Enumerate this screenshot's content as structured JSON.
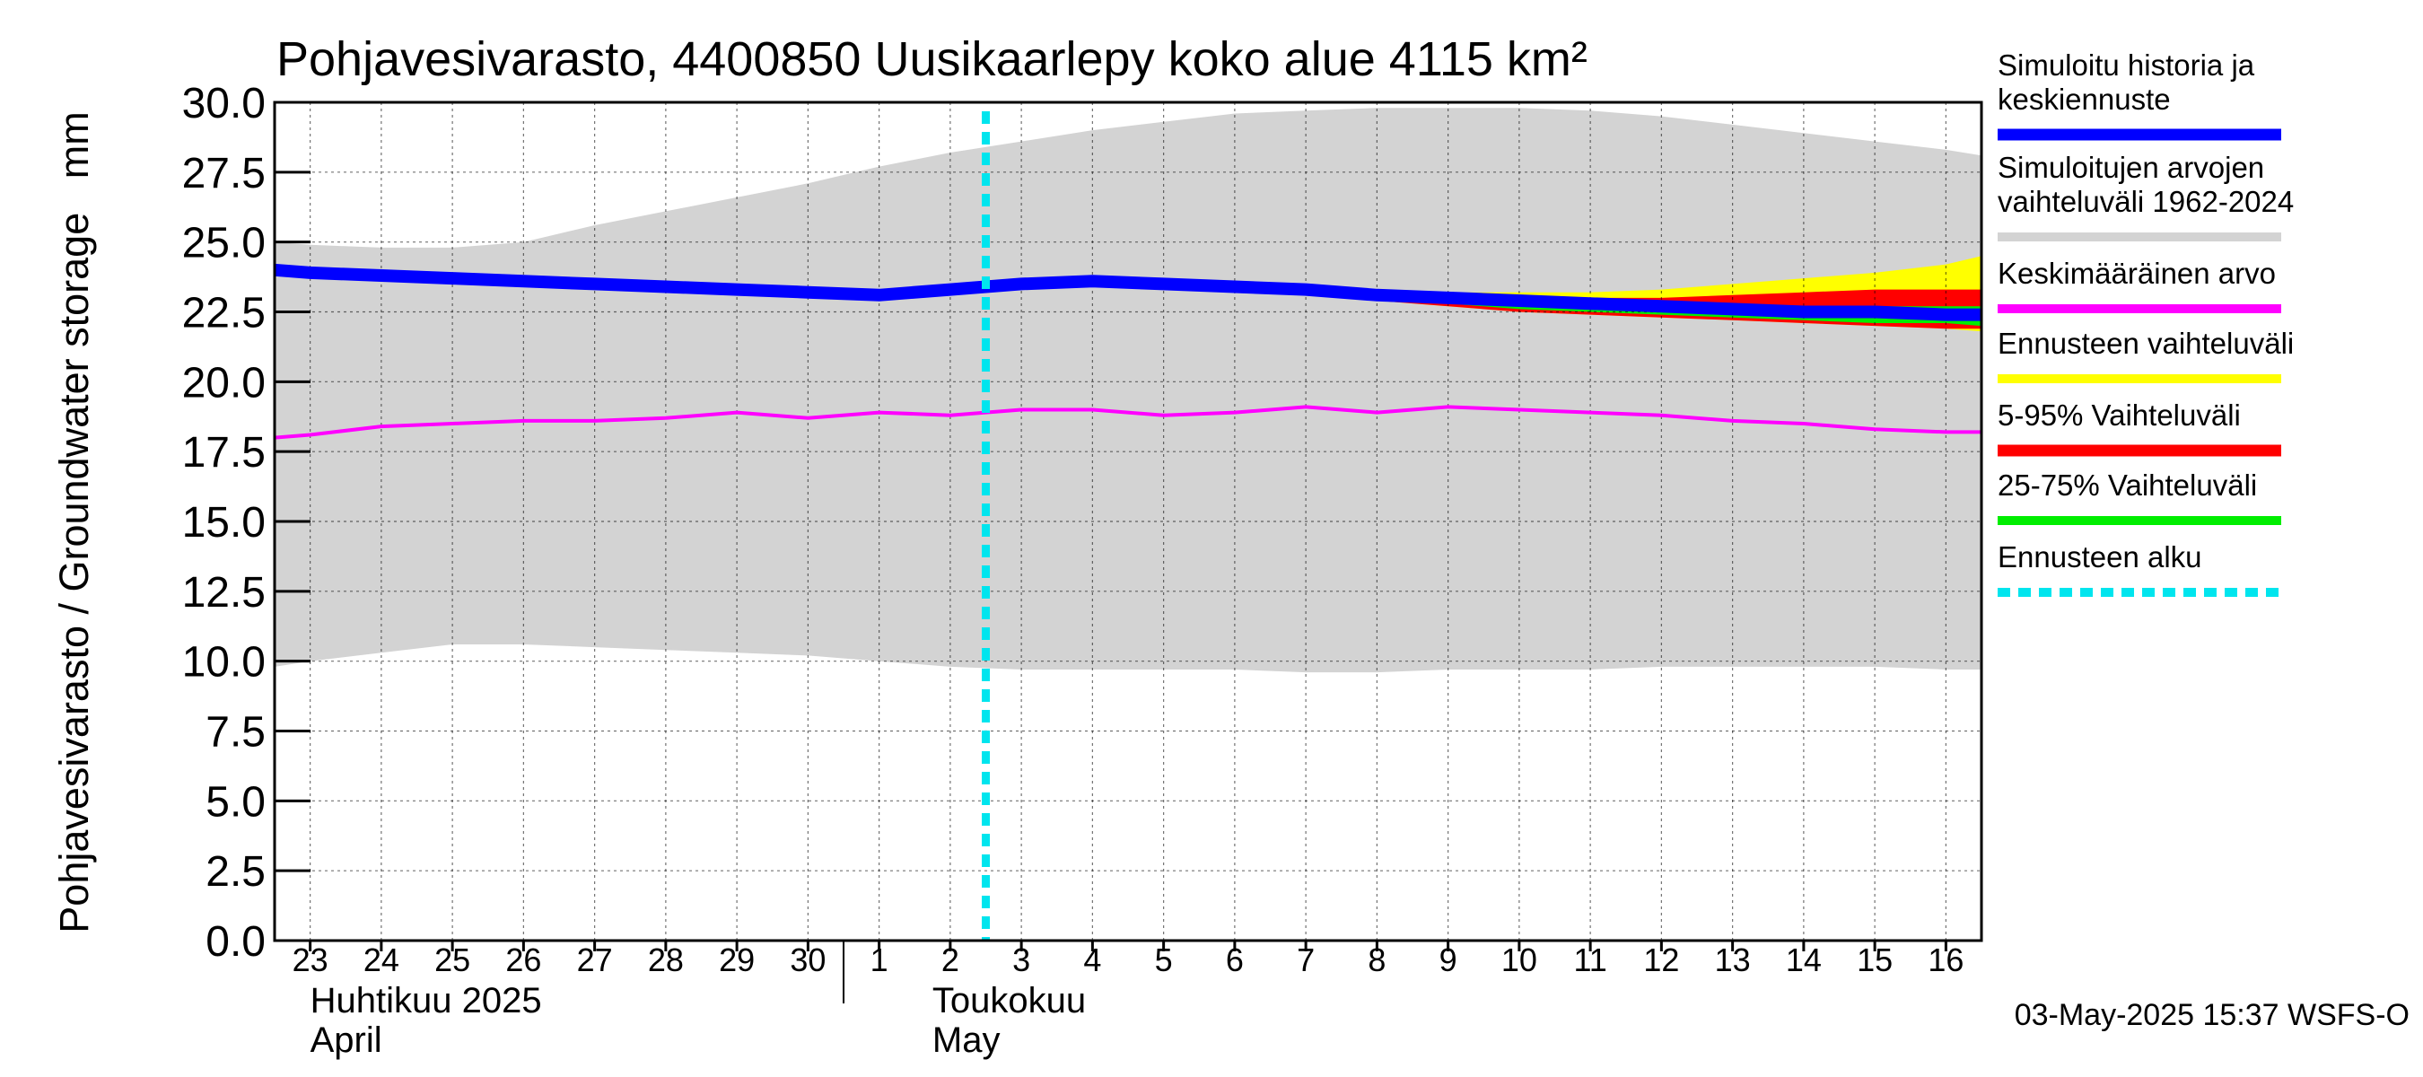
{
  "chart_data": {
    "type": "area",
    "title": "Pohjavesivarasto, 4400850 Uusikaarlepy koko alue 4115 km²",
    "ylabel": "Pohjavesivarasto / Groundwater storage   mm",
    "ylim": [
      0,
      30
    ],
    "yticks": [
      "0.0",
      "2.5",
      "5.0",
      "7.5",
      "10.0",
      "12.5",
      "15.0",
      "17.5",
      "20.0",
      "22.5",
      "25.0",
      "27.5",
      "30.0"
    ],
    "xlim": [
      -0.5,
      23.5
    ],
    "x_day_labels": [
      "23",
      "24",
      "25",
      "26",
      "27",
      "28",
      "29",
      "30",
      "1",
      "2",
      "3",
      "4",
      "5",
      "6",
      "7",
      "8",
      "9",
      "10",
      "11",
      "12",
      "13",
      "14",
      "15",
      "16"
    ],
    "month_labels": [
      {
        "fi": "Huhtikuu  2025",
        "en": "April",
        "at": 0
      },
      {
        "fi": "Toukokuu",
        "en": "May",
        "at": 9
      }
    ],
    "month_boundary": 7.5,
    "forecast_start": 9.5,
    "grid": true,
    "series": [
      {
        "name": "Simuloitujen arvojen vaihteluväli 1962-2024",
        "color": "#d3d3d3",
        "x": [
          -0.5,
          0,
          1,
          2,
          3,
          4,
          5,
          6,
          7,
          8,
          9,
          10,
          11,
          12,
          13,
          14,
          15,
          16,
          17,
          18,
          19,
          20,
          21,
          22,
          23,
          23.5
        ],
        "upper": [
          25.0,
          24.9,
          24.8,
          24.8,
          25.0,
          25.6,
          26.1,
          26.6,
          27.1,
          27.7,
          28.2,
          28.6,
          29.0,
          29.3,
          29.6,
          29.7,
          29.8,
          29.8,
          29.8,
          29.7,
          29.5,
          29.2,
          28.9,
          28.6,
          28.3,
          28.1
        ],
        "lower": [
          9.8,
          10.0,
          10.3,
          10.6,
          10.6,
          10.5,
          10.4,
          10.3,
          10.2,
          10.0,
          9.8,
          9.7,
          9.7,
          9.7,
          9.7,
          9.6,
          9.6,
          9.7,
          9.7,
          9.7,
          9.8,
          9.8,
          9.8,
          9.8,
          9.7,
          9.7
        ]
      },
      {
        "name": "Ennusteen vaihteluväli",
        "color": "#ffff00",
        "x": [
          13,
          14,
          15,
          16,
          17,
          18,
          19,
          20,
          21,
          22,
          23,
          23.5
        ],
        "upper": [
          23.5,
          23.4,
          23.3,
          23.2,
          23.2,
          23.2,
          23.3,
          23.5,
          23.7,
          23.9,
          24.2,
          24.5
        ],
        "lower": [
          23.3,
          23.1,
          22.9,
          22.7,
          22.5,
          22.4,
          22.3,
          22.2,
          22.1,
          22.0,
          21.9,
          21.8
        ]
      },
      {
        "name": "5-95% Vaihteluväli",
        "color": "#ff0000",
        "x": [
          13,
          14,
          15,
          16,
          17,
          18,
          19,
          20,
          21,
          22,
          23,
          23.5
        ],
        "upper": [
          23.5,
          23.4,
          23.3,
          23.2,
          23.1,
          23.0,
          23.0,
          23.1,
          23.2,
          23.3,
          23.3,
          23.3
        ],
        "lower": [
          23.3,
          23.1,
          22.9,
          22.7,
          22.5,
          22.4,
          22.3,
          22.2,
          22.1,
          22.0,
          21.9,
          21.9
        ]
      },
      {
        "name": "25-75% Vaihteluväli",
        "color": "#00ee00",
        "x": [
          14,
          15,
          16,
          17,
          18,
          19,
          20,
          21,
          22,
          23,
          23.5
        ],
        "upper": [
          23.3,
          23.2,
          23.0,
          22.9,
          22.8,
          22.7,
          22.7,
          22.7,
          22.7,
          22.7,
          22.7
        ],
        "lower": [
          23.2,
          23.0,
          22.8,
          22.6,
          22.5,
          22.4,
          22.3,
          22.2,
          22.1,
          22.1,
          22.0
        ]
      },
      {
        "name": "Keskimääräinen arvo",
        "color": "#ff00ff",
        "x": [
          -0.5,
          0,
          1,
          2,
          3,
          4,
          5,
          6,
          7,
          8,
          9,
          10,
          11,
          12,
          13,
          14,
          15,
          16,
          17,
          18,
          19,
          20,
          21,
          22,
          23,
          23.5
        ],
        "values": [
          18.0,
          18.1,
          18.4,
          18.5,
          18.6,
          18.6,
          18.7,
          18.9,
          18.7,
          18.9,
          18.8,
          19.0,
          19.0,
          18.8,
          18.9,
          19.1,
          18.9,
          19.1,
          19.0,
          18.9,
          18.8,
          18.6,
          18.5,
          18.3,
          18.2,
          18.2
        ]
      },
      {
        "name": "Simuloitu historia ja keskiennuste",
        "color": "#0000ff",
        "x": [
          -0.5,
          0,
          1,
          2,
          3,
          4,
          5,
          6,
          7,
          8,
          9,
          10,
          11,
          12,
          13,
          14,
          15,
          16,
          17,
          18,
          19,
          20,
          21,
          22,
          23,
          23.5
        ],
        "values": [
          24.0,
          23.9,
          23.8,
          23.7,
          23.6,
          23.5,
          23.4,
          23.3,
          23.2,
          23.1,
          23.3,
          23.5,
          23.6,
          23.5,
          23.4,
          23.3,
          23.1,
          23.0,
          22.9,
          22.8,
          22.7,
          22.6,
          22.5,
          22.5,
          22.4,
          22.4
        ]
      }
    ],
    "forecast_line": {
      "name": "Ennusteen alku",
      "color": "#00e5ee"
    },
    "legend": {
      "placement": "right",
      "entries": [
        {
          "label": "Simuloitu historia ja keskiennuste",
          "color": "#0000ff"
        },
        {
          "label": "Simuloitujen arvojen vaihteluväli 1962-2024",
          "color": "#d3d3d3"
        },
        {
          "label": "Keskimääräinen arvo",
          "color": "#ff00ff"
        },
        {
          "label": "Ennusteen vaihteluväli",
          "color": "#ffff00"
        },
        {
          "label": "5-95% Vaihteluväli",
          "color": "#ff0000"
        },
        {
          "label": "25-75% Vaihteluväli",
          "color": "#00ee00"
        },
        {
          "label": "Ennusteen alku",
          "color": "#00e5ee"
        }
      ]
    },
    "footer": "03-May-2025 15:37 WSFS-O"
  }
}
